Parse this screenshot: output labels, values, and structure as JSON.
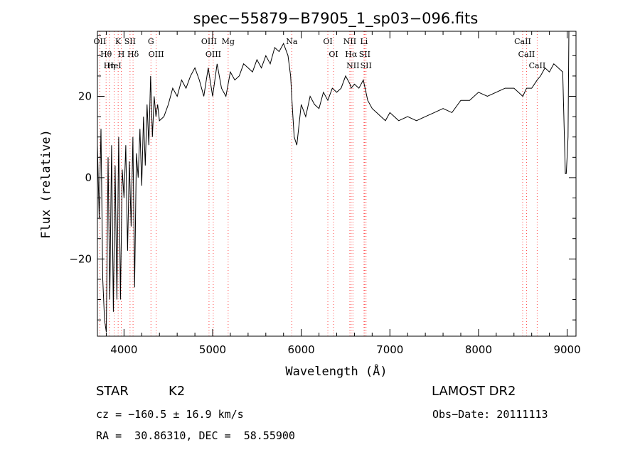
{
  "chart_data": {
    "type": "line",
    "title": "spec−55879−B7905_1_sp03−096.fits",
    "xlabel": "Wavelength (Å)",
    "ylabel": "Flux (relative)",
    "xlim": [
      3700,
      9100
    ],
    "ylim": [
      -39,
      36
    ],
    "xticks": [
      4000,
      5000,
      6000,
      7000,
      8000,
      9000
    ],
    "xtick_labels": [
      "4000",
      "5000",
      "6000",
      "7000",
      "8000",
      "9000"
    ],
    "yticks": [
      -20,
      0,
      20
    ],
    "ytick_labels": [
      "−20",
      "0",
      "20"
    ],
    "grid": false,
    "series": [
      {
        "x": [
          3700,
          3720,
          3740,
          3760,
          3780,
          3800,
          3820,
          3840,
          3860,
          3880,
          3900,
          3920,
          3940,
          3960,
          3980,
          4000,
          4020,
          4040,
          4060,
          4080,
          4100,
          4120,
          4140,
          4160,
          4180,
          4200,
          4220,
          4240,
          4260,
          4280,
          4300,
          4320,
          4340,
          4360,
          4380,
          4400,
          4450,
          4500,
          4550,
          4600,
          4650,
          4700,
          4750,
          4800,
          4850,
          4900,
          4950,
          5000,
          5050,
          5100,
          5150,
          5200,
          5250,
          5300,
          5350,
          5400,
          5450,
          5500,
          5550,
          5600,
          5650,
          5700,
          5750,
          5800,
          5850,
          5880,
          5900,
          5920,
          5950,
          6000,
          6050,
          6100,
          6150,
          6200,
          6250,
          6300,
          6350,
          6400,
          6450,
          6500,
          6550,
          6563,
          6600,
          6650,
          6700,
          6750,
          6800,
          6850,
          6900,
          6950,
          7000,
          7100,
          7200,
          7300,
          7400,
          7500,
          7600,
          7700,
          7800,
          7900,
          8000,
          8100,
          8200,
          8300,
          8400,
          8500,
          8542,
          8600,
          8662,
          8700,
          8750,
          8800,
          8850,
          8900,
          8950,
          8980,
          8990,
          9000,
          9010,
          9020
        ],
        "y": [
          8,
          -10,
          12,
          -25,
          -35,
          -38,
          5,
          -30,
          8,
          -33,
          3,
          -30,
          10,
          -30,
          2,
          -5,
          8,
          -18,
          4,
          -12,
          10,
          -27,
          6,
          0,
          12,
          -2,
          15,
          3,
          18,
          8,
          25,
          10,
          20,
          15,
          18,
          14,
          15,
          18,
          22,
          20,
          24,
          22,
          25,
          27,
          24,
          20,
          27,
          20,
          28,
          22,
          20,
          26,
          24,
          25,
          28,
          27,
          26,
          29,
          27,
          30,
          28,
          32,
          31,
          33,
          30,
          25,
          17,
          10,
          8,
          18,
          15,
          20,
          18,
          17,
          21,
          19,
          22,
          21,
          22,
          25,
          23,
          22,
          23,
          22,
          24,
          19,
          17,
          16,
          15,
          14,
          16,
          14,
          15,
          14,
          15,
          16,
          17,
          16,
          19,
          19,
          21,
          20,
          21,
          22,
          22,
          20,
          22,
          22,
          24,
          25,
          27,
          26,
          28,
          27,
          26,
          1,
          1,
          5,
          10,
          36
        ]
      }
    ],
    "line_markers": [
      {
        "x": 3727,
        "label": "OII"
      },
      {
        "x": 3798,
        "label": "Hθ"
      },
      {
        "x": 3835,
        "label": "Hη"
      },
      {
        "x": 3889,
        "label": "HeI"
      },
      {
        "x": 3934,
        "label": "K"
      },
      {
        "x": 3969,
        "label": "H"
      },
      {
        "x": 4068,
        "label": "SII"
      },
      {
        "x": 4102,
        "label": "Hδ"
      },
      {
        "x": 4304,
        "label": "G"
      },
      {
        "x": 4363,
        "label": "OIII"
      },
      {
        "x": 4959,
        "label": "OIII"
      },
      {
        "x": 5007,
        "label": "OIII"
      },
      {
        "x": 5175,
        "label": "Mg"
      },
      {
        "x": 5893,
        "label": "Na"
      },
      {
        "x": 6300,
        "label": "OI"
      },
      {
        "x": 6364,
        "label": "OI"
      },
      {
        "x": 6548,
        "label": "NII"
      },
      {
        "x": 6563,
        "label": "Hα"
      },
      {
        "x": 6583,
        "label": "NII"
      },
      {
        "x": 6708,
        "label": "Li"
      },
      {
        "x": 6716,
        "label": "SII"
      },
      {
        "x": 6731,
        "label": "SII"
      },
      {
        "x": 8498,
        "label": "CaII"
      },
      {
        "x": 8542,
        "label": "CaII"
      },
      {
        "x": 8662,
        "label": "CaII"
      }
    ]
  },
  "info": {
    "class": "STAR",
    "subclass": "K2",
    "survey": "LAMOST DR2",
    "cz": "cz = −160.5 ± 16.9 km/s",
    "obs_date": "Obs−Date: 20111113",
    "radec": "RA =  30.86310, DEC =  58.55900"
  }
}
